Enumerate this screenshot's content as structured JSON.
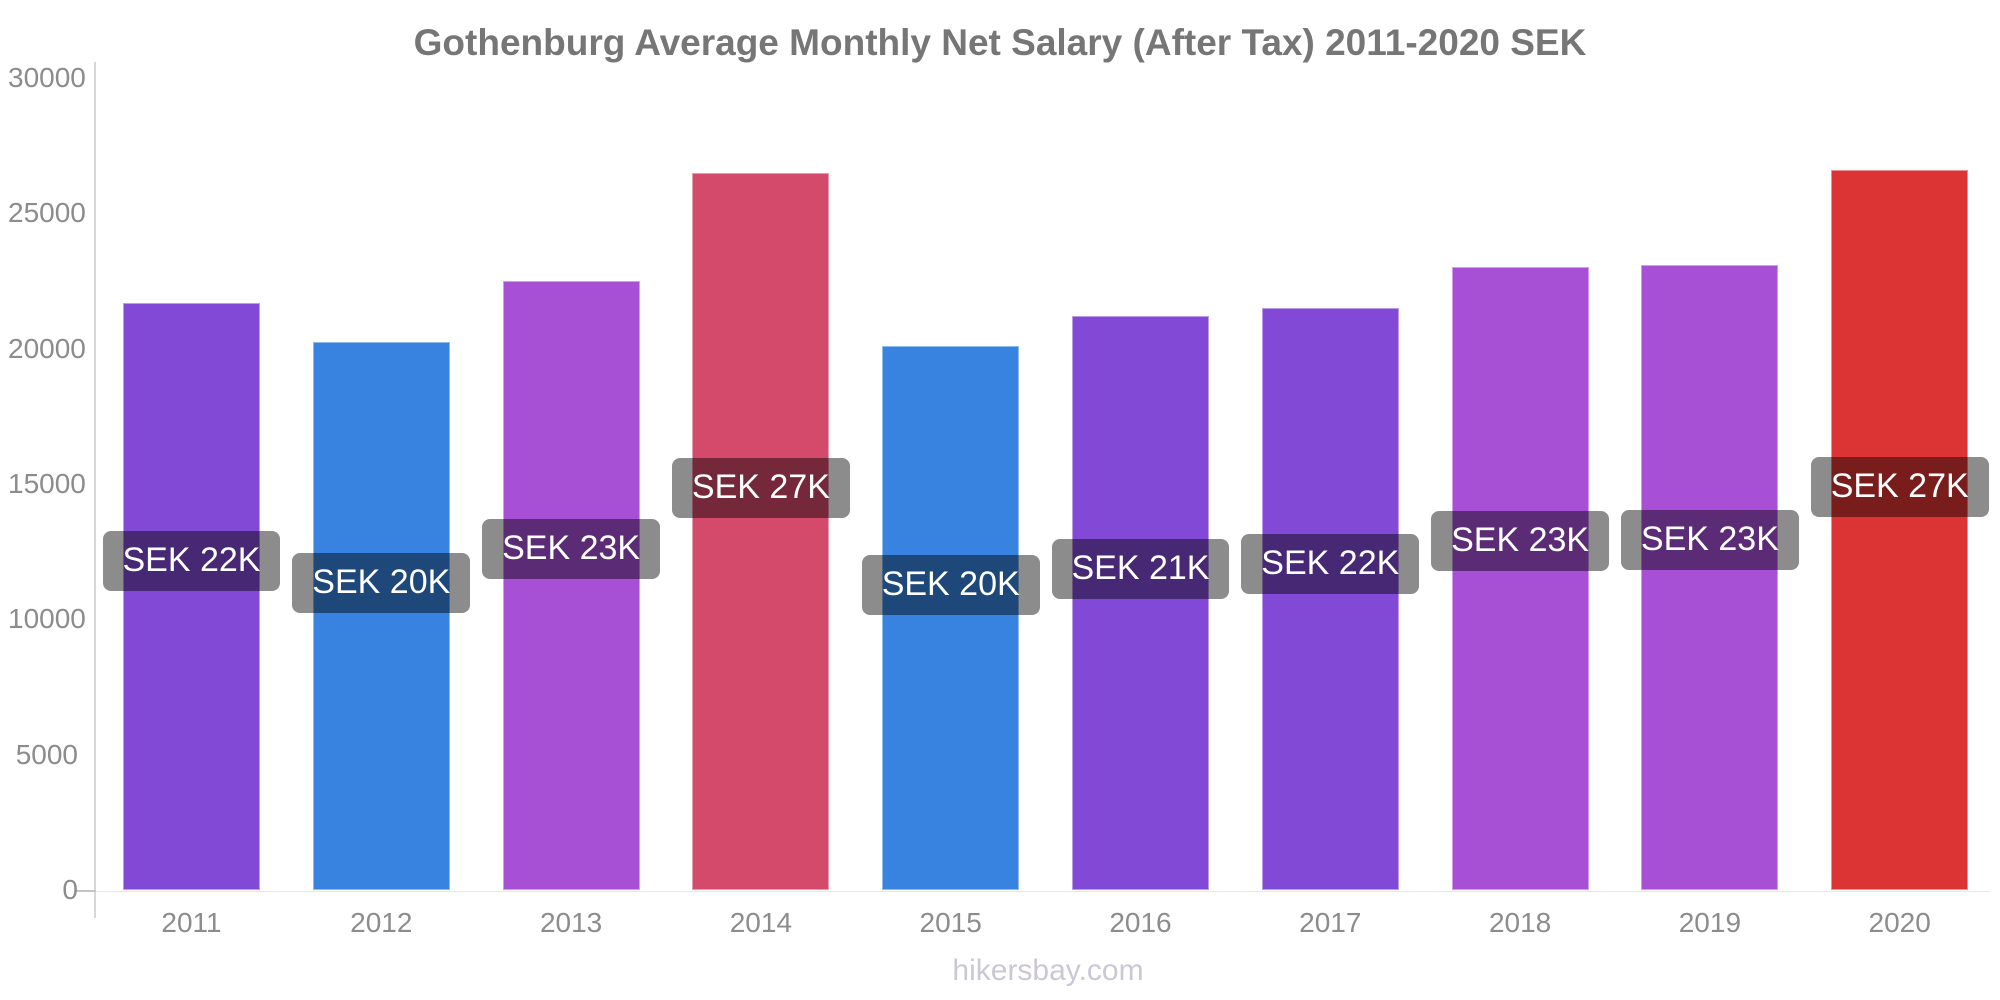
{
  "page": {
    "footer": "hikersbay.com"
  },
  "chart_data": {
    "type": "bar",
    "title": "Gothenburg Average Monthly Net Salary (After Tax) 2011-2020 SEK",
    "currency": "SEK",
    "categories": [
      "2011",
      "2012",
      "2013",
      "2014",
      "2015",
      "2016",
      "2017",
      "2018",
      "2019",
      "2020"
    ],
    "values": [
      21700,
      20250,
      22500,
      26500,
      20100,
      21200,
      21500,
      23000,
      23100,
      26600
    ],
    "bar_labels": [
      "SEK 22K",
      "SEK 20K",
      "SEK 23K",
      "SEK 27K",
      "SEK 20K",
      "SEK 21K",
      "SEK 22K",
      "SEK 23K",
      "SEK 23K",
      "SEK 27K"
    ],
    "bar_colors": [
      "#8149D6",
      "#3883DF",
      "#A750D6",
      "#D44A6A",
      "#3883DF",
      "#8149D6",
      "#8149D6",
      "#A750D6",
      "#A750D6",
      "#DC3434"
    ],
    "badge_overlay_color": "rgba(0,0,0,0.45)",
    "badge_text_color": "#ffffff",
    "ylim": [
      0,
      30000
    ],
    "yticks": [
      0,
      5000,
      10000,
      15000,
      20000,
      25000,
      30000
    ],
    "xlabel": "",
    "ylabel": "",
    "grid": false,
    "legend": false
  }
}
